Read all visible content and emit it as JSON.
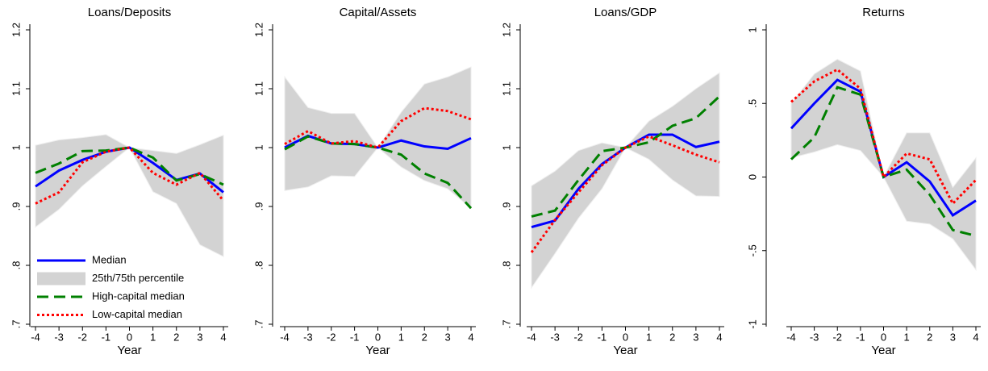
{
  "chart_data": [
    {
      "type": "line",
      "title": "Loans/Deposits",
      "xlabel": "Year",
      "legend_position": "lower left",
      "x": [
        -4,
        -3,
        -2,
        -1,
        0,
        1,
        2,
        3,
        4
      ],
      "xlim": [
        -4,
        4
      ],
      "xticks": [
        -4,
        -3,
        -2,
        -1,
        0,
        1,
        2,
        3,
        4
      ],
      "ylim": [
        0.7,
        1.2
      ],
      "yticks": [
        {
          "value": 0.7,
          "label": ".7"
        },
        {
          "value": 0.8,
          "label": ".8"
        },
        {
          "value": 0.9,
          "label": ".9"
        },
        1,
        1.1,
        1.2
      ],
      "series": [
        {
          "name": "Median",
          "color": "#0000ff",
          "style": "solid",
          "values": [
            0.934,
            0.961,
            0.979,
            0.993,
            1,
            0.974,
            0.945,
            0.956,
            0.924
          ]
        },
        {
          "name": "25th/75th percentile",
          "type": "band",
          "color": "#d3d3d3",
          "lower": [
            0.865,
            0.895,
            0.935,
            0.968,
            1,
            0.925,
            0.905,
            0.835,
            0.815
          ],
          "upper": [
            1.004,
            1.013,
            1.017,
            1.022,
            1,
            0.995,
            0.99,
            1.005,
            1.021
          ]
        },
        {
          "name": "High-capital median",
          "color": "#008000",
          "style": "dashed",
          "values": [
            0.957,
            0.973,
            0.994,
            0.995,
            1,
            0.983,
            0.944,
            0.955,
            0.937
          ]
        },
        {
          "name": "Low-capital median",
          "color": "#ff0000",
          "style": "dotted",
          "values": [
            0.905,
            0.924,
            0.975,
            0.993,
            1,
            0.957,
            0.937,
            0.957,
            0.91
          ]
        }
      ]
    },
    {
      "type": "line",
      "title": "Capital/Assets",
      "xlabel": "Year",
      "x": [
        -4,
        -3,
        -2,
        -1,
        0,
        1,
        2,
        3,
        4
      ],
      "xlim": [
        -4,
        4
      ],
      "xticks": [
        -4,
        -3,
        -2,
        -1,
        0,
        1,
        2,
        3,
        4
      ],
      "ylim": [
        0.7,
        1.2
      ],
      "yticks": [
        {
          "value": 0.7,
          "label": ".7"
        },
        {
          "value": 0.8,
          "label": ".8"
        },
        {
          "value": 0.9,
          "label": ".9"
        },
        1,
        1.1,
        1.2
      ],
      "series": [
        {
          "color": "#0000ff",
          "style": "solid",
          "values": [
            1.0,
            1.02,
            1.007,
            1.006,
            1,
            1.012,
            1.002,
            0.998,
            1.016
          ]
        },
        {
          "type": "band",
          "color": "#d3d3d3",
          "lower": [
            0.927,
            0.933,
            0.952,
            0.951,
            1,
            0.967,
            0.944,
            0.93,
            0.897
          ],
          "upper": [
            1.12,
            1.068,
            1.058,
            1.058,
            1,
            1.06,
            1.108,
            1.12,
            1.137
          ]
        },
        {
          "color": "#008000",
          "style": "dashed",
          "values": [
            0.997,
            1.019,
            1.007,
            1.006,
            1,
            0.988,
            0.956,
            0.94,
            0.897
          ]
        },
        {
          "color": "#ff0000",
          "style": "dotted",
          "values": [
            1.006,
            1.028,
            1.007,
            1.011,
            1,
            1.045,
            1.067,
            1.062,
            1.048
          ]
        }
      ]
    },
    {
      "type": "line",
      "title": "Loans/GDP",
      "xlabel": "Year",
      "x": [
        -4,
        -3,
        -2,
        -1,
        0,
        1,
        2,
        3,
        4
      ],
      "xlim": [
        -4,
        4
      ],
      "xticks": [
        -4,
        -3,
        -2,
        -1,
        0,
        1,
        2,
        3,
        4
      ],
      "ylim": [
        0.7,
        1.2
      ],
      "yticks": [
        {
          "value": 0.7,
          "label": ".7"
        },
        {
          "value": 0.8,
          "label": ".8"
        },
        {
          "value": 0.9,
          "label": ".9"
        },
        1,
        1.1,
        1.2
      ],
      "series": [
        {
          "color": "#0000ff",
          "style": "solid",
          "values": [
            0.865,
            0.876,
            0.93,
            0.972,
            1,
            1.022,
            1.022,
            1.001,
            1.01
          ]
        },
        {
          "type": "band",
          "color": "#d3d3d3",
          "lower": [
            0.762,
            0.82,
            0.88,
            0.93,
            1,
            0.98,
            0.945,
            0.918,
            0.917
          ],
          "upper": [
            0.935,
            0.96,
            0.995,
            1.008,
            1,
            1.045,
            1.07,
            1.1,
            1.127
          ]
        },
        {
          "color": "#008000",
          "style": "dashed",
          "values": [
            0.883,
            0.893,
            0.945,
            0.994,
            1,
            1.009,
            1.037,
            1.05,
            1.087
          ]
        },
        {
          "color": "#ff0000",
          "style": "dotted",
          "values": [
            0.822,
            0.877,
            0.924,
            0.97,
            1,
            1.019,
            1.004,
            0.988,
            0.975
          ]
        }
      ]
    },
    {
      "type": "line",
      "title": "Returns",
      "xlabel": "Year",
      "x": [
        -4,
        -3,
        -2,
        -1,
        0,
        1,
        2,
        3,
        4
      ],
      "xlim": [
        -4,
        4
      ],
      "xticks": [
        -4,
        -3,
        -2,
        -1,
        0,
        1,
        2,
        3,
        4
      ],
      "ylim": [
        -1,
        1
      ],
      "yticks": [
        -1,
        {
          "value": -0.5,
          "label": "-.5"
        },
        0,
        {
          "value": 0.5,
          "label": ".5"
        },
        1
      ],
      "series": [
        {
          "color": "#0000ff",
          "style": "solid",
          "values": [
            0.33,
            0.5,
            0.66,
            0.58,
            0,
            0.1,
            -0.03,
            -0.26,
            -0.16
          ]
        },
        {
          "type": "band",
          "color": "#d3d3d3",
          "lower": [
            0.13,
            0.17,
            0.22,
            0.18,
            0,
            -0.3,
            -0.32,
            -0.42,
            -0.63
          ],
          "upper": [
            0.5,
            0.7,
            0.8,
            0.72,
            0,
            0.3,
            0.3,
            -0.07,
            0.13
          ]
        },
        {
          "color": "#008000",
          "style": "dashed",
          "values": [
            0.12,
            0.27,
            0.61,
            0.56,
            0,
            0.05,
            -0.12,
            -0.36,
            -0.4
          ]
        },
        {
          "color": "#ff0000",
          "style": "dotted",
          "values": [
            0.51,
            0.65,
            0.73,
            0.6,
            0,
            0.16,
            0.12,
            -0.18,
            -0.02
          ]
        }
      ]
    }
  ]
}
